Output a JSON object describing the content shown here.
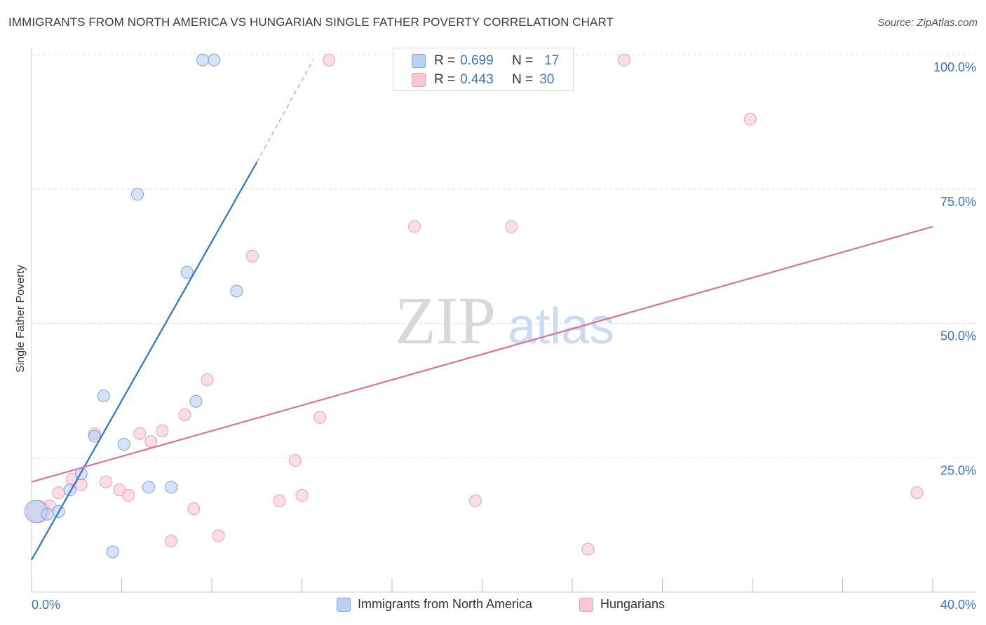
{
  "title": "IMMIGRANTS FROM NORTH AMERICA VS HUNGARIAN SINGLE FATHER POVERTY CORRELATION CHART",
  "source": "Source: ZipAtlas.com",
  "legend": {
    "series1": {
      "r_label": "R =",
      "r_value": "0.699",
      "n_label": "N =",
      "n_value": "17"
    },
    "series2": {
      "r_label": "R =",
      "r_value": "0.443",
      "n_label": "N =",
      "n_value": "30"
    }
  },
  "bottom_legend": {
    "series1": "Immigrants from North America",
    "series2": "Hungarians"
  },
  "colors": {
    "blue_fill": "#b9d1f5",
    "blue_stroke": "#7aa3e0",
    "blue_line": "#2f74d0",
    "pink_fill": "#f8c6d6",
    "pink_stroke": "#eba0b9",
    "pink_line": "#e0709a",
    "accent_text": "#3a74c9"
  },
  "chart_data": {
    "type": "scatter",
    "title": "IMMIGRANTS FROM NORTH AMERICA VS HUNGARIAN SINGLE FATHER POVERTY CORRELATION CHART",
    "xlabel": "",
    "ylabel": "Single Father Poverty",
    "xlim": [
      0,
      40
    ],
    "ylim": [
      0,
      100
    ],
    "x_tick_labels": [
      "0.0%",
      "40.0%"
    ],
    "y_tick_labels": [
      "25.0%",
      "50.0%",
      "75.0%",
      "100.0%"
    ],
    "y_ticks": [
      25,
      50,
      75,
      100
    ],
    "watermark": {
      "zip": "ZIP",
      "atlas": "atlas"
    },
    "series": [
      {
        "name": "Immigrants from North America",
        "r": 0.699,
        "n": 17,
        "points": [
          {
            "x": 0.2,
            "y": 15.0,
            "s": "large"
          },
          {
            "x": 0.7,
            "y": 14.5
          },
          {
            "x": 1.2,
            "y": 15.0
          },
          {
            "x": 1.7,
            "y": 19.0
          },
          {
            "x": 2.2,
            "y": 22.0
          },
          {
            "x": 2.8,
            "y": 29.0
          },
          {
            "x": 3.2,
            "y": 36.5
          },
          {
            "x": 3.6,
            "y": 7.5
          },
          {
            "x": 4.1,
            "y": 27.5
          },
          {
            "x": 4.7,
            "y": 74.0
          },
          {
            "x": 5.2,
            "y": 19.5
          },
          {
            "x": 6.2,
            "y": 19.5
          },
          {
            "x": 6.9,
            "y": 59.5
          },
          {
            "x": 7.3,
            "y": 35.5
          },
          {
            "x": 7.6,
            "y": 99.0
          },
          {
            "x": 8.1,
            "y": 99.0
          },
          {
            "x": 9.1,
            "y": 56.0
          }
        ],
        "trend": {
          "x1": 0.0,
          "y1": 6.0,
          "x2": 10.0,
          "y2": 80.0,
          "dash_to_x": 12.5,
          "dash_to_y": 99.0
        }
      },
      {
        "name": "Hungarians",
        "r": 0.443,
        "n": 30,
        "points": [
          {
            "x": 0.3,
            "y": 15.0,
            "s": "large"
          },
          {
            "x": 0.8,
            "y": 16.0
          },
          {
            "x": 1.2,
            "y": 18.5
          },
          {
            "x": 1.8,
            "y": 21.0
          },
          {
            "x": 2.2,
            "y": 20.0
          },
          {
            "x": 2.8,
            "y": 29.5
          },
          {
            "x": 3.3,
            "y": 20.5
          },
          {
            "x": 3.9,
            "y": 19.0
          },
          {
            "x": 4.3,
            "y": 18.0
          },
          {
            "x": 4.8,
            "y": 29.5
          },
          {
            "x": 5.3,
            "y": 28.0
          },
          {
            "x": 5.8,
            "y": 30.0
          },
          {
            "x": 6.2,
            "y": 9.5
          },
          {
            "x": 6.8,
            "y": 33.0
          },
          {
            "x": 7.2,
            "y": 15.5
          },
          {
            "x": 7.8,
            "y": 39.5
          },
          {
            "x": 8.3,
            "y": 10.5
          },
          {
            "x": 9.8,
            "y": 62.5
          },
          {
            "x": 11.0,
            "y": 17.0
          },
          {
            "x": 11.7,
            "y": 24.5
          },
          {
            "x": 12.0,
            "y": 18.0
          },
          {
            "x": 12.8,
            "y": 32.5
          },
          {
            "x": 13.2,
            "y": 99.0
          },
          {
            "x": 17.0,
            "y": 68.0
          },
          {
            "x": 19.7,
            "y": 17.0
          },
          {
            "x": 21.3,
            "y": 68.0
          },
          {
            "x": 24.7,
            "y": 8.0
          },
          {
            "x": 26.3,
            "y": 99.0
          },
          {
            "x": 31.9,
            "y": 88.0
          },
          {
            "x": 39.3,
            "y": 18.5
          }
        ],
        "trend": {
          "x1": 0.0,
          "y1": 20.5,
          "x2": 40.0,
          "y2": 68.0
        }
      }
    ]
  }
}
